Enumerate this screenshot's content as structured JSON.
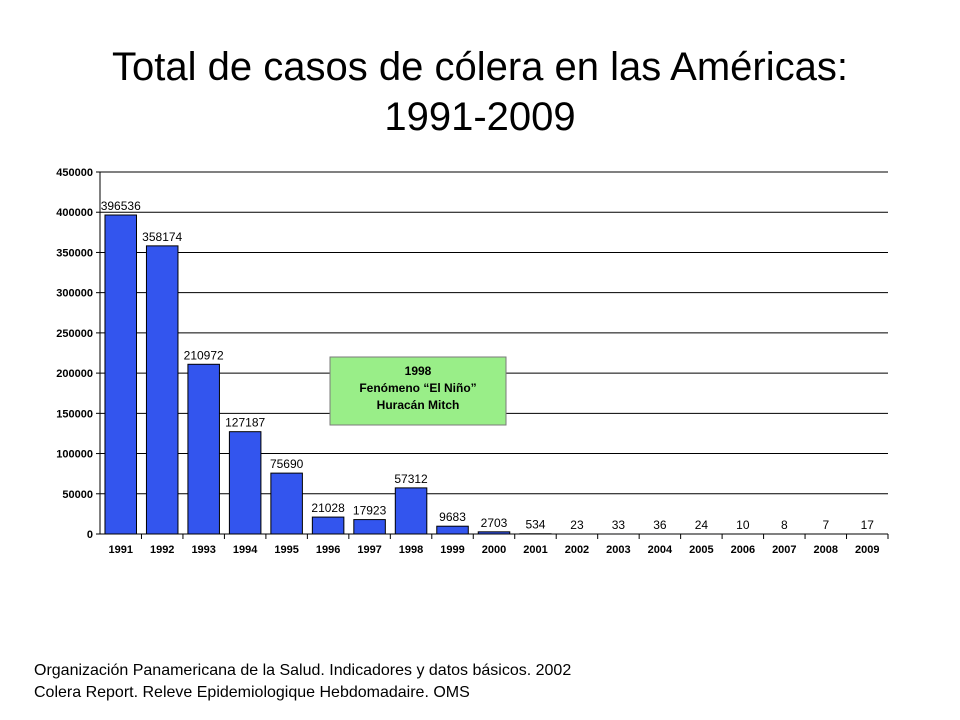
{
  "chart_data": {
    "type": "bar",
    "title_lines": [
      "Total de casos de cólera en las Américas:",
      "1991-2009"
    ],
    "xlabel": "",
    "ylabel": "",
    "categories": [
      "1991",
      "1992",
      "1993",
      "1994",
      "1995",
      "1996",
      "1997",
      "1998",
      "1999",
      "2000",
      "2001",
      "2002",
      "2003",
      "2004",
      "2005",
      "2006",
      "2007",
      "2008",
      "2009"
    ],
    "values": [
      396536,
      358174,
      210972,
      127187,
      75690,
      21028,
      17923,
      57312,
      9683,
      2703,
      534,
      23,
      33,
      36,
      24,
      10,
      8,
      7,
      17
    ],
    "data_labels": [
      "396536",
      "358174",
      "210972",
      "127187",
      "75690",
      "21028",
      "17923",
      "57312",
      "9683",
      "2703",
      "534",
      "23",
      "33",
      "36",
      "24",
      "10",
      "8",
      "7",
      "17"
    ],
    "ylim": [
      0,
      450000
    ],
    "yticks": [
      0,
      50000,
      100000,
      150000,
      200000,
      250000,
      300000,
      350000,
      400000,
      450000
    ],
    "ytick_labels": [
      "0",
      "50000",
      "100000",
      "150000",
      "200000",
      "250000",
      "300000",
      "350000",
      "400000",
      "450000"
    ],
    "grid": true,
    "legend": "none",
    "annotation": {
      "lines": [
        "1998",
        "Fenómeno “El Niño”",
        "Huracán Mitch"
      ],
      "fill": "#99ee88"
    },
    "colors": {
      "bar": "#3355ee",
      "bar_edge": "#000000",
      "grid": "#000000"
    }
  },
  "footer": {
    "lines": [
      "Organización Panamericana de la Salud. Indicadores y datos básicos. 2002",
      "Colera Report. Releve Epidemiologique Hebdomadaire. OMS"
    ]
  }
}
